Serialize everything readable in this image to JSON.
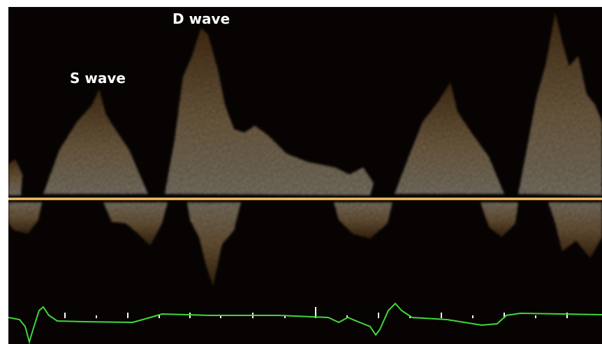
{
  "annotations": [
    "S wave",
    "D wave"
  ]
}
